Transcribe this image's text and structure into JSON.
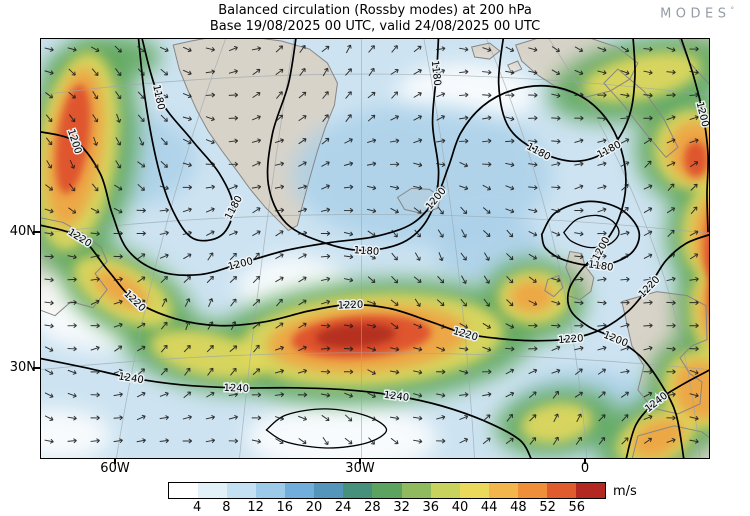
{
  "header": {
    "title_line1": "Balanced circulation (Rossby modes) at 200 hPa",
    "title_line2": "Base 19/08/2025 00 UTC, valid 24/08/2025 00 UTC",
    "logo_text": "MODES",
    "logo_sup": "°"
  },
  "map": {
    "lat_tick_labels": [
      "40N",
      "30N"
    ],
    "lon_tick_labels": [
      "60W",
      "30W",
      "0"
    ],
    "contour_levels": [
      "1180",
      "1200",
      "1220",
      "1240"
    ]
  },
  "colorbar": {
    "tick_labels": [
      "4",
      "8",
      "12",
      "16",
      "20",
      "24",
      "28",
      "32",
      "36",
      "40",
      "44",
      "48",
      "52",
      "56"
    ],
    "unit": "m/s",
    "segment_colors": [
      "#ffffff",
      "#e2f0f8",
      "#c3e1f3",
      "#9ccbe9",
      "#72aedb",
      "#5496bb",
      "#45917c",
      "#5ba35f",
      "#8fba5e",
      "#c8d35e",
      "#ead95a",
      "#f2b64c",
      "#ef8f3a",
      "#e05b2d",
      "#b32821"
    ]
  },
  "chart_data": {
    "type": "heatmap",
    "title": "Balanced circulation (Rossby modes) at 200 hPa",
    "subtitle": "Base 19/08/2025 00 UTC, valid 24/08/2025 00 UTC",
    "shaded_field": "wind speed",
    "shaded_units": "m/s",
    "colorbar_tick_values": [
      4,
      8,
      12,
      16,
      20,
      24,
      28,
      32,
      36,
      40,
      44,
      48,
      52,
      56
    ],
    "colorbar_colors": [
      "#ffffff",
      "#e2f0f8",
      "#c3e1f3",
      "#9ccbe9",
      "#72aedb",
      "#5496bb",
      "#45917c",
      "#5ba35f",
      "#8fba5e",
      "#c8d35e",
      "#ead95a",
      "#f2b64c",
      "#ef8f3a",
      "#e05b2d",
      "#b32821"
    ],
    "contour_overlay_levels": [
      1180,
      1200,
      1220,
      1240
    ],
    "vector_overlay": "wind direction arrows",
    "x_tick_labels": [
      "60W",
      "30W",
      "0"
    ],
    "y_tick_labels": [
      "40N",
      "30N"
    ],
    "legend_position": "bottom horizontal colorbar",
    "notable_features": [
      "Elongated jet streak exceeding 56 m/s near 30W between 30N and 40N",
      "Strong curved jet along the eastern edge of the domain",
      "Jet streak at the western edge near 60W",
      "Weak winds over Greenland and beneath the mid-Atlantic ridge"
    ]
  }
}
